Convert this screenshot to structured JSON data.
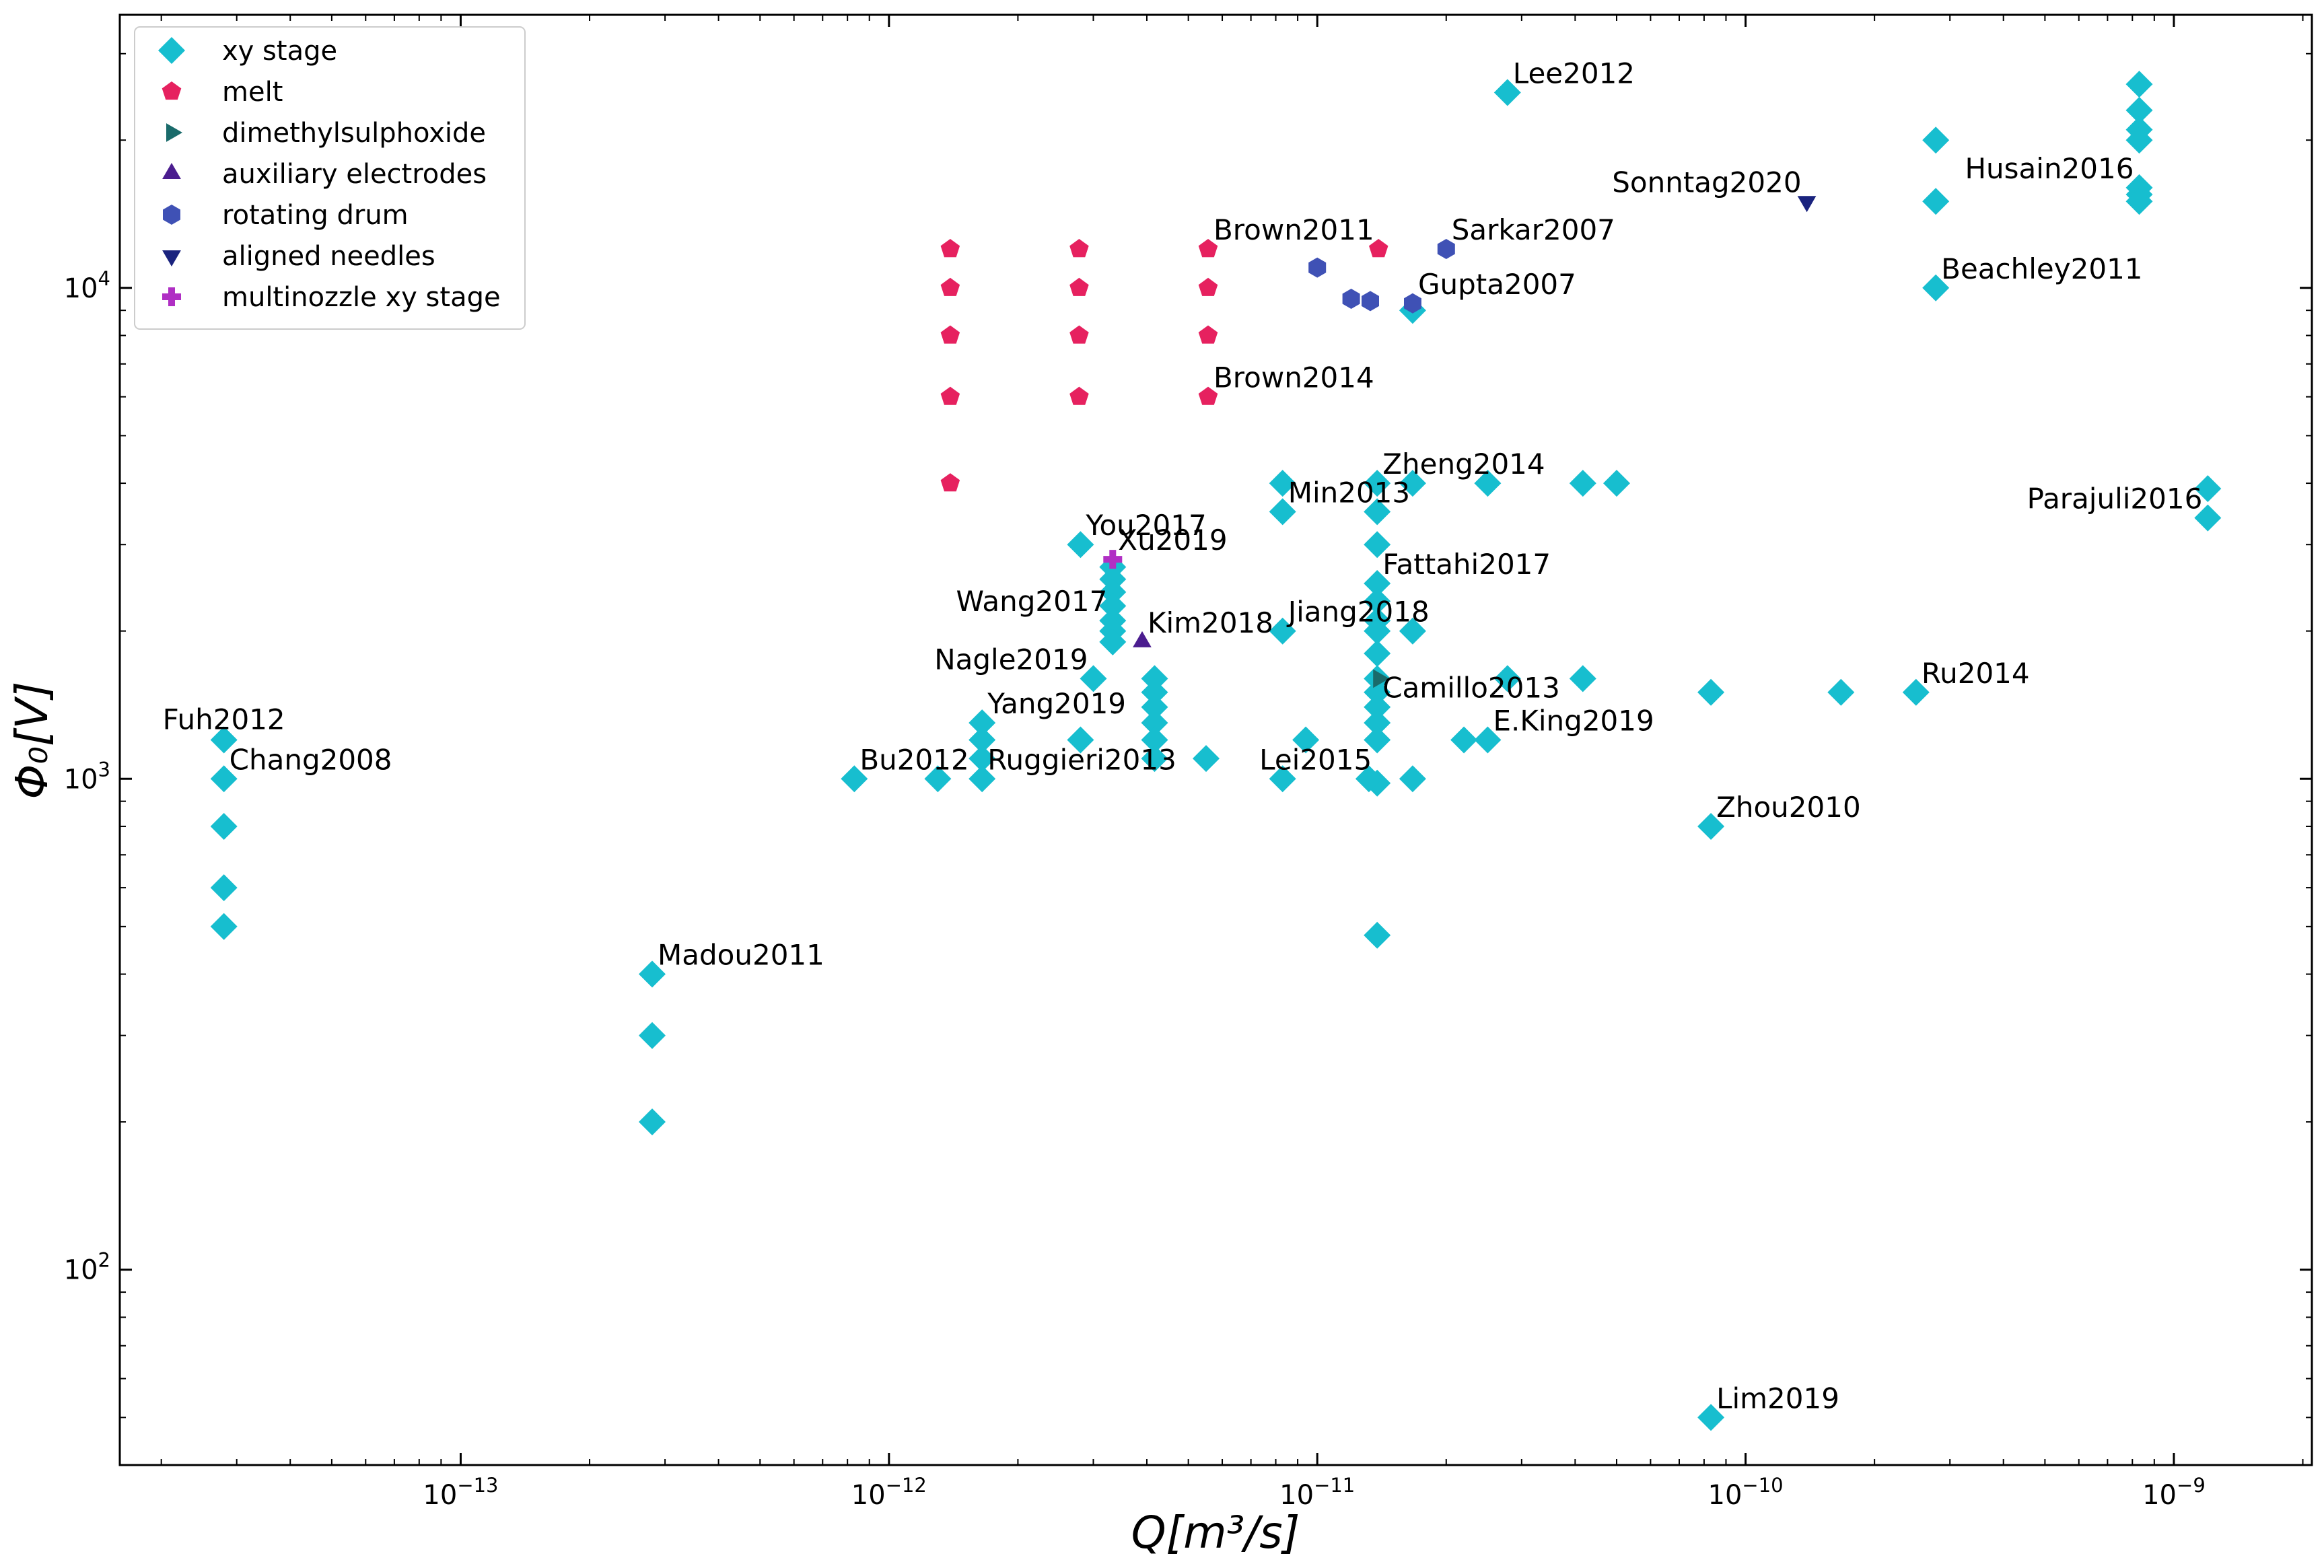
{
  "chart_data": {
    "type": "scatter",
    "title": "",
    "xlabel": "Q[m³/s]",
    "ylabel": "Φ₀[V]",
    "xscale": "log",
    "yscale": "log",
    "xlim": [
      1.6e-14,
      2.1e-09
    ],
    "ylim": [
      40,
      36000
    ],
    "grid": false,
    "legend_position": "top-left",
    "x_ticks": [
      {
        "value": 1e-13,
        "base": "10",
        "exp": "−13"
      },
      {
        "value": 1e-12,
        "base": "10",
        "exp": "−12"
      },
      {
        "value": 1e-11,
        "base": "10",
        "exp": "−11"
      },
      {
        "value": 1e-10,
        "base": "10",
        "exp": "−10"
      },
      {
        "value": 1e-09,
        "base": "10",
        "exp": "−9"
      }
    ],
    "y_ticks": [
      {
        "value": 100,
        "base": "10",
        "exp": "2"
      },
      {
        "value": 1000,
        "base": "10",
        "exp": "3"
      },
      {
        "value": 10000,
        "base": "10",
        "exp": "4"
      }
    ],
    "series": [
      {
        "name": "xy stage",
        "marker": "diamond",
        "color": "#17becf",
        "points": [
          [
            2.8e-14,
            1200
          ],
          [
            2.8e-14,
            1000
          ],
          [
            2.8e-14,
            800
          ],
          [
            2.8e-14,
            600
          ],
          [
            2.8e-14,
            500
          ],
          [
            2.8e-13,
            400
          ],
          [
            2.8e-13,
            300
          ],
          [
            2.8e-13,
            200
          ],
          [
            8.3e-13,
            1000
          ],
          [
            1.3e-12,
            1000
          ],
          [
            1.65e-12,
            1300
          ],
          [
            1.65e-12,
            1200
          ],
          [
            1.65e-12,
            1100
          ],
          [
            1.65e-12,
            1000
          ],
          [
            2.8e-12,
            3000
          ],
          [
            2.8e-12,
            1200
          ],
          [
            3e-12,
            1600
          ],
          [
            3.33e-12,
            2700
          ],
          [
            3.33e-12,
            2550
          ],
          [
            3.33e-12,
            2400
          ],
          [
            3.33e-12,
            2250
          ],
          [
            3.33e-12,
            2100
          ],
          [
            3.33e-12,
            2000
          ],
          [
            3.33e-12,
            1900
          ],
          [
            4.17e-12,
            1600
          ],
          [
            4.17e-12,
            1500
          ],
          [
            4.17e-12,
            1400
          ],
          [
            4.17e-12,
            1300
          ],
          [
            4.17e-12,
            1200
          ],
          [
            4.17e-12,
            1100
          ],
          [
            5.5e-12,
            1100
          ],
          [
            8.3e-12,
            4000
          ],
          [
            8.3e-12,
            3500
          ],
          [
            8.3e-12,
            2000
          ],
          [
            8.3e-12,
            1000
          ],
          [
            9.4e-12,
            1200
          ],
          [
            1.38e-11,
            4000
          ],
          [
            1.38e-11,
            3500
          ],
          [
            1.38e-11,
            3000
          ],
          [
            1.38e-11,
            2500
          ],
          [
            1.38e-11,
            2300
          ],
          [
            1.38e-11,
            2100
          ],
          [
            1.38e-11,
            2000
          ],
          [
            1.38e-11,
            1800
          ],
          [
            1.38e-11,
            1600
          ],
          [
            1.38e-11,
            1500
          ],
          [
            1.38e-11,
            1400
          ],
          [
            1.38e-11,
            1300
          ],
          [
            1.38e-11,
            1200
          ],
          [
            1.38e-11,
            980
          ],
          [
            1.38e-11,
            480
          ],
          [
            1.32e-11,
            1000
          ],
          [
            1.67e-11,
            4000
          ],
          [
            1.67e-11,
            2000
          ],
          [
            1.67e-11,
            1000
          ],
          [
            1.67e-11,
            9000
          ],
          [
            2.2e-11,
            1200
          ],
          [
            2.5e-11,
            4000
          ],
          [
            2.5e-11,
            1200
          ],
          [
            2.78e-11,
            25000
          ],
          [
            2.78e-11,
            1600
          ],
          [
            4.17e-11,
            4000
          ],
          [
            4.17e-11,
            1600
          ],
          [
            5e-11,
            4000
          ],
          [
            8.3e-11,
            1500
          ],
          [
            8.3e-11,
            800
          ],
          [
            8.3e-11,
            50
          ],
          [
            1.67e-10,
            1500
          ],
          [
            2.5e-10,
            1500
          ],
          [
            2.78e-10,
            20000
          ],
          [
            2.78e-10,
            15000
          ],
          [
            2.78e-10,
            10000
          ],
          [
            8.3e-10,
            26000
          ],
          [
            8.3e-10,
            23000
          ],
          [
            8.3e-10,
            21000
          ],
          [
            8.3e-10,
            20000
          ],
          [
            8.3e-10,
            16000
          ],
          [
            8.3e-10,
            15500
          ],
          [
            8.3e-10,
            15000
          ],
          [
            1.2e-09,
            3900
          ],
          [
            1.2e-09,
            3400
          ]
        ]
      },
      {
        "name": "melt",
        "marker": "pentagon",
        "color": "#e6215f",
        "points": [
          [
            1.39e-12,
            12000
          ],
          [
            1.39e-12,
            10000
          ],
          [
            1.39e-12,
            8000
          ],
          [
            1.39e-12,
            6000
          ],
          [
            1.39e-12,
            4000
          ],
          [
            2.78e-12,
            12000
          ],
          [
            2.78e-12,
            10000
          ],
          [
            2.78e-12,
            8000
          ],
          [
            2.78e-12,
            6000
          ],
          [
            5.56e-12,
            12000
          ],
          [
            5.56e-12,
            10000
          ],
          [
            5.56e-12,
            8000
          ],
          [
            5.56e-12,
            6000
          ],
          [
            1.39e-11,
            12000
          ]
        ]
      },
      {
        "name": "dimethylsulphoxide",
        "marker": "triangle-right",
        "color": "#1a6b6b",
        "points": [
          [
            1.39e-11,
            1600
          ]
        ]
      },
      {
        "name": "auxiliary electrodes",
        "marker": "triangle-up",
        "color": "#4b1d8f",
        "points": [
          [
            3.9e-12,
            1900
          ]
        ]
      },
      {
        "name": "rotating drum",
        "marker": "hexagon",
        "color": "#3f51b5",
        "points": [
          [
            1e-11,
            11000
          ],
          [
            1.2e-11,
            9500
          ],
          [
            1.33e-11,
            9400
          ],
          [
            1.67e-11,
            9300
          ],
          [
            2e-11,
            12000
          ]
        ]
      },
      {
        "name": "aligned needles",
        "marker": "triangle-down",
        "color": "#1a237e",
        "points": [
          [
            1.39e-10,
            15000
          ]
        ]
      },
      {
        "name": "multinozzle xy stage",
        "marker": "plus",
        "color": "#b02fc4",
        "points": [
          [
            3.33e-12,
            2800
          ]
        ]
      }
    ],
    "annotations": [
      {
        "text": "Lee2012",
        "x": 2.78e-11,
        "y": 25000,
        "anchor": "start"
      },
      {
        "text": "Sonntag2020",
        "x": 1.39e-10,
        "y": 15000,
        "anchor": "end"
      },
      {
        "text": "Husain2016",
        "x": 8.3e-10,
        "y": 16000,
        "anchor": "end"
      },
      {
        "text": "Beachley2011",
        "x": 2.78e-10,
        "y": 10000,
        "anchor": "start"
      },
      {
        "text": "Brown2011",
        "x": 5.56e-12,
        "y": 12000,
        "anchor": "start"
      },
      {
        "text": "Sarkar2007",
        "x": 2e-11,
        "y": 12000,
        "anchor": "start"
      },
      {
        "text": "Gupta2007",
        "x": 1.67e-11,
        "y": 9300,
        "anchor": "start"
      },
      {
        "text": "Brown2014",
        "x": 5.56e-12,
        "y": 6000,
        "anchor": "start"
      },
      {
        "text": "Zheng2014",
        "x": 1.38e-11,
        "y": 4000,
        "anchor": "start"
      },
      {
        "text": "Parajuli2016",
        "x": 1.2e-09,
        "y": 3400,
        "anchor": "end"
      },
      {
        "text": "You2017",
        "x": 2.8e-12,
        "y": 3000,
        "anchor": "start"
      },
      {
        "text": "Min2013",
        "x": 8.3e-12,
        "y": 3500,
        "anchor": "start"
      },
      {
        "text": "Xu2019",
        "x": 3.33e-12,
        "y": 2800,
        "anchor": "start"
      },
      {
        "text": "Fattahi2017",
        "x": 1.38e-11,
        "y": 2500,
        "anchor": "start"
      },
      {
        "text": "Wang2017",
        "x": 3.33e-12,
        "y": 2100,
        "anchor": "end"
      },
      {
        "text": "Kim2018",
        "x": 3.9e-12,
        "y": 1900,
        "anchor": "start"
      },
      {
        "text": "Jiang2018",
        "x": 8.3e-12,
        "y": 2000,
        "anchor": "start"
      },
      {
        "text": "Nagle2019",
        "x": 3e-12,
        "y": 1600,
        "anchor": "end"
      },
      {
        "text": "Ru2014",
        "x": 2.5e-10,
        "y": 1500,
        "anchor": "start"
      },
      {
        "text": "Fuh2012",
        "x": 2.8e-14,
        "y": 1200,
        "anchor": "middle"
      },
      {
        "text": "Yang2019",
        "x": 1.65e-12,
        "y": 1300,
        "anchor": "start"
      },
      {
        "text": "Camillo2013",
        "x": 1.38e-11,
        "y": 1400,
        "anchor": "start"
      },
      {
        "text": "Chang2008",
        "x": 2.8e-14,
        "y": 1000,
        "anchor": "start"
      },
      {
        "text": "Bu2012",
        "x": 8.3e-13,
        "y": 1000,
        "anchor": "start"
      },
      {
        "text": "Lei2015",
        "x": 1.38e-11,
        "y": 1000,
        "anchor": "end"
      },
      {
        "text": "E.King2019",
        "x": 2.5e-11,
        "y": 1200,
        "anchor": "start"
      },
      {
        "text": "Ruggieri2013",
        "x": 1.65e-12,
        "y": 1000,
        "anchor": "start"
      },
      {
        "text": "Zhou2010",
        "x": 8.3e-11,
        "y": 800,
        "anchor": "start"
      },
      {
        "text": "Madou2011",
        "x": 2.8e-13,
        "y": 400,
        "anchor": "start"
      },
      {
        "text": "Lim2019",
        "x": 8.3e-11,
        "y": 50,
        "anchor": "start"
      }
    ]
  }
}
